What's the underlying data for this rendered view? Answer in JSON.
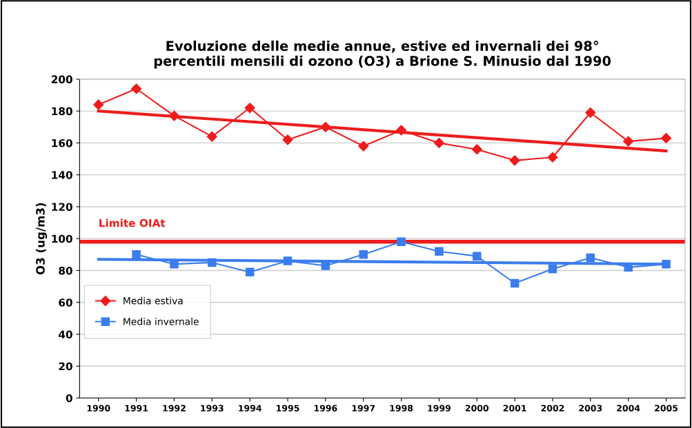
{
  "chart_data": {
    "type": "line",
    "title": "Evoluzione delle medie annue, estive ed invernali dei 98°\npercentili mensili di ozono (O3) a Brione S. Minusio dal 1990",
    "ylabel": "O3 (ug/m3)",
    "categories": [
      "1990",
      "1991",
      "1992",
      "1993",
      "1994",
      "1995",
      "1996",
      "1997",
      "1998",
      "1999",
      "2000",
      "2001",
      "2002",
      "2003",
      "2004",
      "2005"
    ],
    "series": [
      {
        "name": "Media estiva",
        "color": "#ee1c1c",
        "marker": "diamond",
        "values": [
          184,
          194,
          177,
          164,
          182,
          162,
          170,
          158,
          168,
          160,
          156,
          149,
          151,
          179,
          161,
          163
        ]
      },
      {
        "name": "Media invernale",
        "color": "#3b7ded",
        "marker": "square",
        "values": [
          null,
          90,
          84,
          85,
          79,
          86,
          83,
          90,
          98,
          92,
          89,
          72,
          81,
          88,
          82,
          84
        ]
      },
      {
        "type": "line",
        "color": "#ee1c1c",
        "values": [
          180,
          null,
          null,
          null,
          null,
          null,
          null,
          null,
          null,
          null,
          null,
          null,
          null,
          null,
          null,
          155
        ]
      },
      {
        "type": "line",
        "color": "#3b7ded",
        "values": [
          87,
          null,
          null,
          null,
          null,
          null,
          null,
          null,
          null,
          null,
          null,
          null,
          null,
          null,
          null,
          84
        ]
      }
    ],
    "ref_lines": [
      {
        "axis": "y",
        "value": 98,
        "label": "Limite OIAt",
        "color": "#ee1c1c"
      }
    ],
    "ylim": [
      0,
      200
    ],
    "yticks": [
      0,
      20,
      40,
      60,
      80,
      100,
      120,
      140,
      160,
      180,
      200
    ],
    "grid": "y",
    "legend": "left"
  }
}
